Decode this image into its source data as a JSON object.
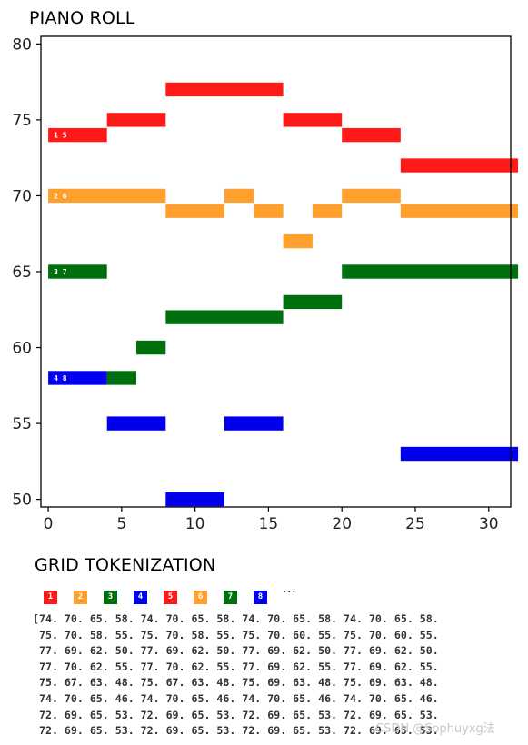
{
  "sections": {
    "roll_title": "PIANO ROLL",
    "grid_title": "GRID TOKENIZATION"
  },
  "chart_data": {
    "type": "piano_roll",
    "title": "PIANO ROLL",
    "xlim": [
      -0.5,
      31.5
    ],
    "ylim": [
      49.5,
      80.5
    ],
    "x_ticks": [
      0,
      5,
      10,
      15,
      20,
      25,
      30
    ],
    "y_ticks": [
      50,
      55,
      60,
      65,
      70,
      75,
      80
    ],
    "grid": false,
    "voice_colors": [
      "#ff1a1a",
      "#ff9f2e",
      "#00700f",
      "#0000ee"
    ],
    "voices": [
      {
        "label": "1 5",
        "color": "#ff1a1a",
        "notes": [
          {
            "start": 0,
            "end": 4,
            "pitch": 74
          },
          {
            "start": 4,
            "end": 8,
            "pitch": 75
          },
          {
            "start": 8,
            "end": 16,
            "pitch": 77
          },
          {
            "start": 16,
            "end": 20,
            "pitch": 75
          },
          {
            "start": 20,
            "end": 24,
            "pitch": 74
          },
          {
            "start": 24,
            "end": 32,
            "pitch": 72
          }
        ]
      },
      {
        "label": "2 6",
        "color": "#ff9f2e",
        "notes": [
          {
            "start": 0,
            "end": 8,
            "pitch": 70
          },
          {
            "start": 8,
            "end": 12,
            "pitch": 69
          },
          {
            "start": 12,
            "end": 14,
            "pitch": 70
          },
          {
            "start": 14,
            "end": 16,
            "pitch": 69
          },
          {
            "start": 16,
            "end": 18,
            "pitch": 67
          },
          {
            "start": 18,
            "end": 20,
            "pitch": 69
          },
          {
            "start": 20,
            "end": 24,
            "pitch": 70
          },
          {
            "start": 24,
            "end": 32,
            "pitch": 69
          }
        ]
      },
      {
        "label": "3 7",
        "color": "#00700f",
        "notes": [
          {
            "start": 0,
            "end": 4,
            "pitch": 65
          },
          {
            "start": 4,
            "end": 6,
            "pitch": 58
          },
          {
            "start": 6,
            "end": 8,
            "pitch": 60
          },
          {
            "start": 8,
            "end": 16,
            "pitch": 62
          },
          {
            "start": 16,
            "end": 20,
            "pitch": 63
          },
          {
            "start": 20,
            "end": 32,
            "pitch": 65
          }
        ]
      },
      {
        "label": "4 8",
        "color": "#0000ee",
        "notes": [
          {
            "start": 0,
            "end": 4,
            "pitch": 58
          },
          {
            "start": 4,
            "end": 8,
            "pitch": 55
          },
          {
            "start": 8,
            "end": 12,
            "pitch": 50
          },
          {
            "start": 12,
            "end": 16,
            "pitch": 55
          },
          {
            "start": 24,
            "end": 32,
            "pitch": 53
          }
        ]
      }
    ]
  },
  "legend": {
    "items": [
      {
        "label": "1",
        "color": "#ff1a1a"
      },
      {
        "label": "2",
        "color": "#ff9f2e"
      },
      {
        "label": "3",
        "color": "#00700f"
      },
      {
        "label": "4",
        "color": "#0000ee"
      },
      {
        "label": "5",
        "color": "#ff1a1a"
      },
      {
        "label": "6",
        "color": "#ff9f2e"
      },
      {
        "label": "7",
        "color": "#00700f"
      },
      {
        "label": "8",
        "color": "#0000ee"
      }
    ],
    "ellipsis": "..."
  },
  "tokens": {
    "rows": [
      "[74. 70. 65. 58. 74. 70. 65. 58. 74. 70. 65. 58. 74. 70. 65. 58.",
      " 75. 70. 58. 55. 75. 70. 58. 55. 75. 70. 60. 55. 75. 70. 60. 55.",
      " 77. 69. 62. 50. 77. 69. 62. 50. 77. 69. 62. 50. 77. 69. 62. 50.",
      " 77. 70. 62. 55. 77. 70. 62. 55. 77. 69. 62. 55. 77. 69. 62. 55.",
      " 75. 67. 63. 48. 75. 67. 63. 48. 75. 69. 63. 48. 75. 69. 63. 48.",
      " 74. 70. 65. 46. 74. 70. 65. 46. 74. 70. 65. 46. 74. 70. 65. 46.",
      " 72. 69. 65. 53. 72. 69. 65. 53. 72. 69. 65. 53. 72. 69. 65. 53.",
      " 72. 69. 65. 53. 72. 69. 65. 53. 72. 69. 65. 53. 72. 69. 65. 53."
    ]
  },
  "watermark": "CSDN @Sophuyxg法"
}
